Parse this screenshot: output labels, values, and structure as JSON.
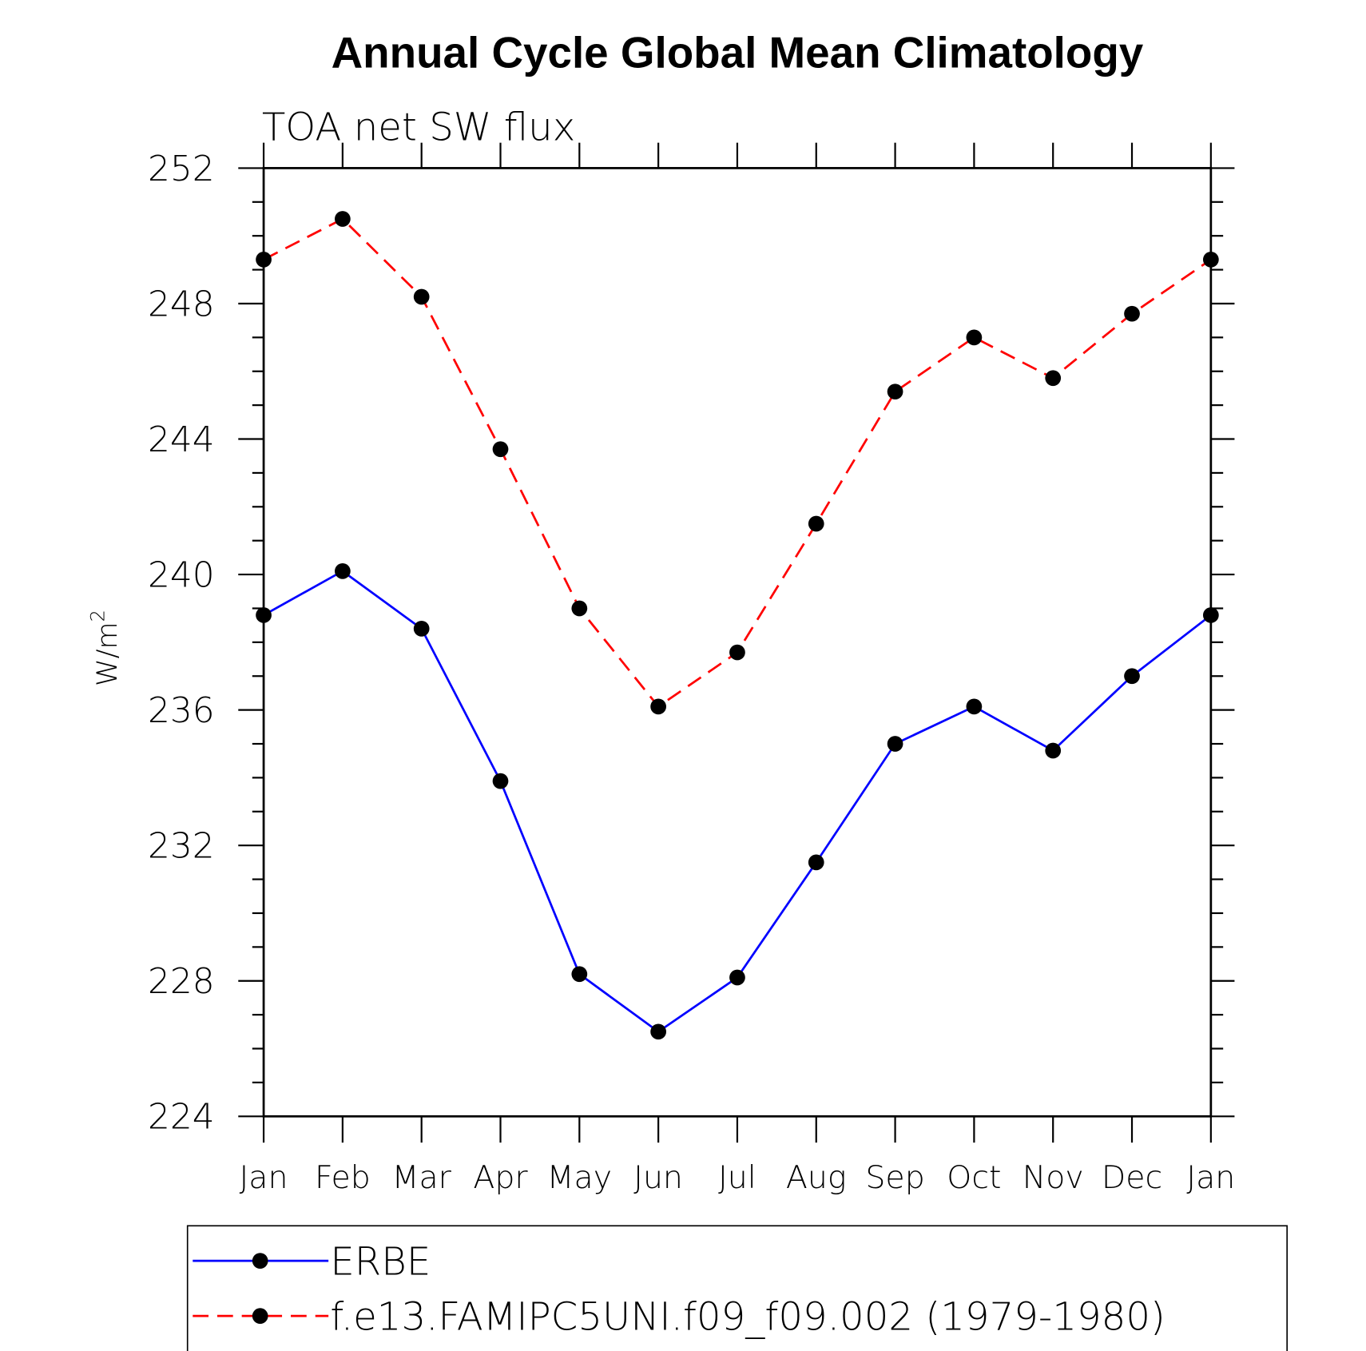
{
  "chart_data": {
    "type": "line",
    "title": "Annual Cycle Global Mean Climatology",
    "subtitle": "TOA net SW flux",
    "xlabel": "",
    "ylabel": "W/m",
    "ylabel_superscript": "2",
    "categories": [
      "Jan",
      "Feb",
      "Mar",
      "Apr",
      "May",
      "Jun",
      "Jul",
      "Aug",
      "Sep",
      "Oct",
      "Nov",
      "Dec",
      "Jan"
    ],
    "ylim": [
      224,
      252
    ],
    "yticks": [
      224,
      228,
      232,
      236,
      240,
      244,
      248,
      252
    ],
    "ytick_labels": [
      "224",
      "228",
      "232",
      "236",
      "240",
      "244",
      "248",
      "252"
    ],
    "grid": false,
    "legend_position": "bottom",
    "series": [
      {
        "name": "ERBE",
        "color": "#0000ff",
        "dash": "solid",
        "values": [
          238.8,
          240.1,
          238.4,
          233.9,
          228.2,
          226.5,
          228.1,
          231.5,
          235.0,
          236.1,
          234.8,
          237.0,
          238.8
        ]
      },
      {
        "name": "f.e13.FAMIPC5UNI.f09_f09.002 (1979-1980)",
        "color": "#ff0000",
        "dash": "dashed",
        "values": [
          249.3,
          250.5,
          248.2,
          243.7,
          239.0,
          236.1,
          237.7,
          241.5,
          245.4,
          247.0,
          245.8,
          247.7,
          249.3
        ]
      }
    ]
  }
}
